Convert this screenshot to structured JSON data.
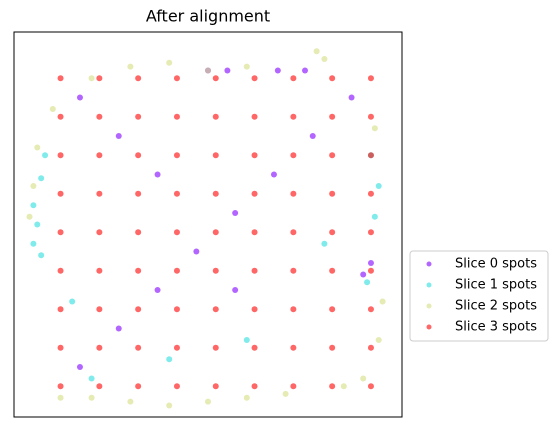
{
  "chart_data": {
    "type": "scatter",
    "title": "After alignment",
    "xlim": [
      0,
      100
    ],
    "ylim": [
      0,
      100
    ],
    "legend": "right",
    "alpha": 0.6,
    "series": [
      {
        "name": "Slice 0 spots",
        "color": "#8000ff",
        "x": [
          17,
          27,
          37,
          47,
          57,
          67,
          77,
          87,
          17,
          27,
          37,
          57,
          50,
          55,
          68,
          75,
          92,
          90
        ],
        "y": [
          13,
          23,
          33,
          43,
          53,
          63,
          73,
          83,
          83,
          73,
          63,
          33,
          90,
          90,
          90,
          90,
          40,
          37
        ]
      },
      {
        "name": "Slice 1 spots",
        "color": "#2adddd",
        "x": [
          5,
          6,
          5,
          7,
          8,
          7,
          94,
          93,
          92,
          91,
          20,
          40,
          60,
          15,
          80
        ],
        "y": [
          45,
          50,
          55,
          62,
          68,
          42,
          60,
          52,
          68,
          35,
          10,
          15,
          20,
          30,
          45
        ]
      },
      {
        "name": "Slice 2 spots",
        "color": "#d4dd80",
        "x": [
          20,
          30,
          40,
          50,
          60,
          78,
          80,
          5,
          6,
          4,
          20,
          30,
          40,
          50,
          60,
          70,
          85,
          95,
          94,
          93,
          90,
          10,
          12
        ],
        "y": [
          88,
          91,
          92,
          90,
          91,
          95,
          93,
          60,
          70,
          52,
          5,
          4,
          3,
          4,
          5,
          6,
          8,
          30,
          20,
          75,
          10,
          80,
          5
        ]
      },
      {
        "name": "Slice 3 spots",
        "color": "#ff0000",
        "x": [
          12,
          22,
          32,
          42,
          52,
          62,
          72,
          82,
          92,
          12,
          22,
          32,
          42,
          52,
          62,
          72,
          82,
          92,
          12,
          22,
          32,
          42,
          52,
          62,
          72,
          82,
          92,
          12,
          22,
          32,
          42,
          52,
          62,
          72,
          82,
          92,
          12,
          22,
          32,
          42,
          52,
          62,
          72,
          82,
          92,
          12,
          22,
          32,
          42,
          52,
          62,
          72,
          82,
          92,
          12,
          22,
          32,
          42,
          52,
          62,
          72,
          82,
          92,
          12,
          22,
          32,
          42,
          52,
          62,
          72,
          82,
          92,
          12,
          22,
          32,
          42,
          52,
          62,
          72,
          82,
          92
        ],
        "y": [
          8,
          8,
          8,
          8,
          8,
          8,
          8,
          8,
          8,
          18,
          18,
          18,
          18,
          18,
          18,
          18,
          18,
          18,
          28,
          28,
          28,
          28,
          28,
          28,
          28,
          28,
          28,
          38,
          38,
          38,
          38,
          38,
          38,
          38,
          38,
          38,
          48,
          48,
          48,
          48,
          48,
          48,
          48,
          48,
          48,
          58,
          58,
          58,
          58,
          58,
          58,
          58,
          58,
          58,
          68,
          68,
          68,
          68,
          68,
          68,
          68,
          68,
          68,
          78,
          78,
          78,
          78,
          78,
          78,
          78,
          78,
          78,
          88,
          88,
          88,
          88,
          88,
          88,
          88,
          88,
          88
        ]
      }
    ]
  }
}
